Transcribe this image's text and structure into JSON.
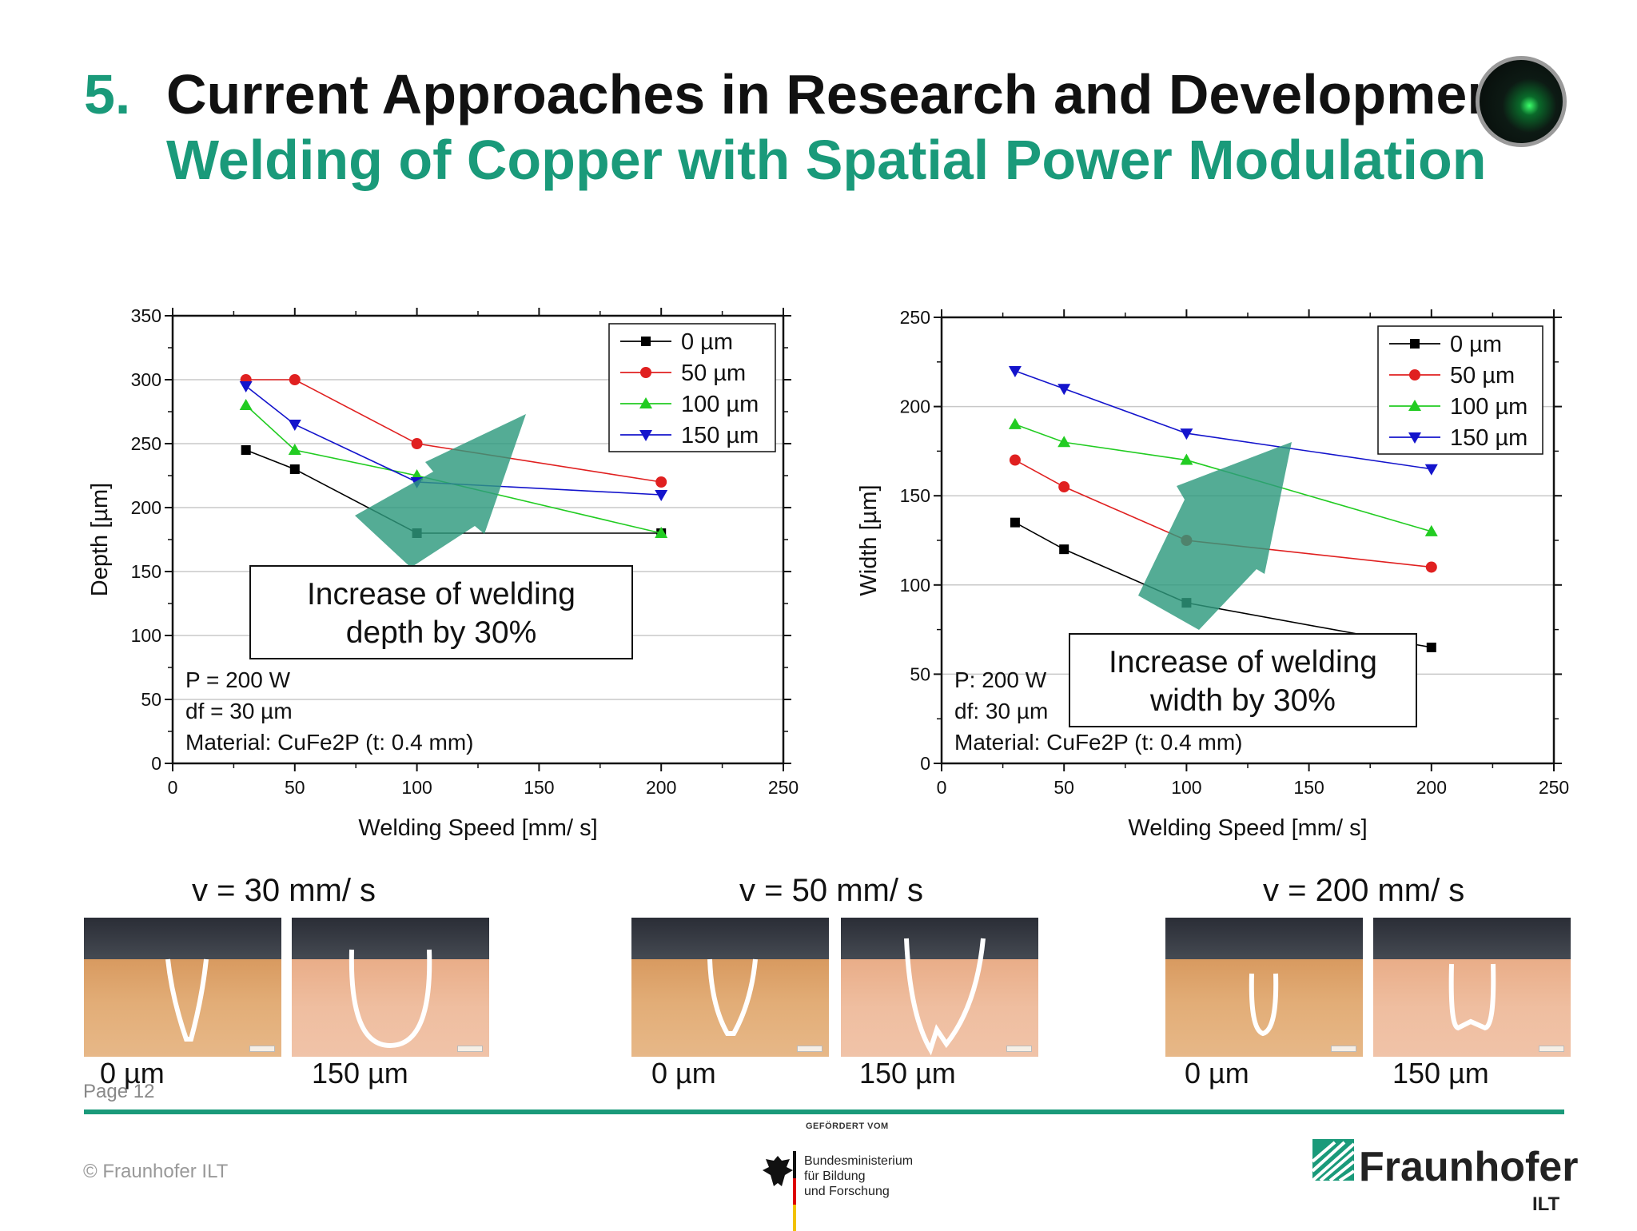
{
  "slide": {
    "number": "5.",
    "title": "Current Approaches in Research and Development",
    "subtitle": "Welding of Copper with Spatial Power Modulation",
    "page_label": "Page 12"
  },
  "colors": {
    "accent": "#1a9a7a",
    "arrow": "#2e9a7e",
    "series_0": "#000000",
    "series_50": "#e02020",
    "series_100": "#22cc22",
    "series_150": "#1414cc"
  },
  "chart_data": [
    {
      "type": "line",
      "xlabel": "Welding Speed [mm/ s]",
      "ylabel": "Depth [µm]",
      "xlim": [
        0,
        250
      ],
      "ylim": [
        0,
        350
      ],
      "xticks": [
        0,
        50,
        100,
        150,
        200,
        250
      ],
      "yticks": [
        0,
        50,
        100,
        150,
        200,
        250,
        300,
        350
      ],
      "grid": "horizontal",
      "legend": "top-right",
      "x": [
        30,
        50,
        100,
        200
      ],
      "series": [
        {
          "name": "0 µm",
          "marker": "square",
          "color": "#000000",
          "values": [
            245,
            230,
            180,
            180
          ]
        },
        {
          "name": "50 µm",
          "marker": "circle",
          "color": "#e02020",
          "values": [
            300,
            300,
            250,
            220
          ]
        },
        {
          "name": "100 µm",
          "marker": "triangle-up",
          "color": "#22cc22",
          "values": [
            280,
            245,
            225,
            180
          ]
        },
        {
          "name": "150 µm",
          "marker": "triangle-down",
          "color": "#1414cc",
          "values": [
            295,
            265,
            220,
            210
          ]
        }
      ],
      "callout": {
        "line1": "Increase of welding",
        "line2": "depth by 30%"
      },
      "parameters": [
        "P = 200 W",
        "df = 30 µm",
        "Material: CuFe2P (t: 0.4 mm)"
      ]
    },
    {
      "type": "line",
      "xlabel": "Welding Speed [mm/ s]",
      "ylabel": "Width [µm]",
      "xlim": [
        0,
        250
      ],
      "ylim": [
        0,
        250
      ],
      "xticks": [
        0,
        50,
        100,
        150,
        200,
        250
      ],
      "yticks": [
        0,
        50,
        100,
        150,
        200,
        250
      ],
      "grid": "horizontal",
      "legend": "top-right",
      "x": [
        30,
        50,
        100,
        200
      ],
      "series": [
        {
          "name": "0 µm",
          "marker": "square",
          "color": "#000000",
          "values": [
            135,
            120,
            90,
            65
          ]
        },
        {
          "name": "50 µm",
          "marker": "circle",
          "color": "#e02020",
          "values": [
            170,
            155,
            125,
            110
          ]
        },
        {
          "name": "100 µm",
          "marker": "triangle-up",
          "color": "#22cc22",
          "values": [
            190,
            180,
            170,
            130
          ]
        },
        {
          "name": "150 µm",
          "marker": "triangle-down",
          "color": "#1414cc",
          "values": [
            220,
            210,
            185,
            165
          ]
        }
      ],
      "callout": {
        "line1": "Increase of welding",
        "line2": "width by 30%"
      },
      "parameters": [
        "P: 200 W",
        "df: 30 µm",
        "Material: CuFe2P (t: 0.4 mm)"
      ]
    }
  ],
  "micrographs": [
    {
      "velocity": "v = 30 mm/ s",
      "left_label": "0 µm",
      "right_label": "150 µm"
    },
    {
      "velocity": "v = 50 mm/ s",
      "left_label": "0 µm",
      "right_label": "150 µm"
    },
    {
      "velocity": "v = 200 mm/ s",
      "left_label": "0 µm",
      "right_label": "150 µm"
    }
  ],
  "footer": {
    "copyright": "© Fraunhofer ILT",
    "funded_by": "GEFÖRDERT VOM",
    "ministry_line1": "Bundesministerium",
    "ministry_line2": "für Bildung",
    "ministry_line3": "und Forschung",
    "logo_name": "Fraunhofer",
    "logo_sub": "ILT"
  }
}
